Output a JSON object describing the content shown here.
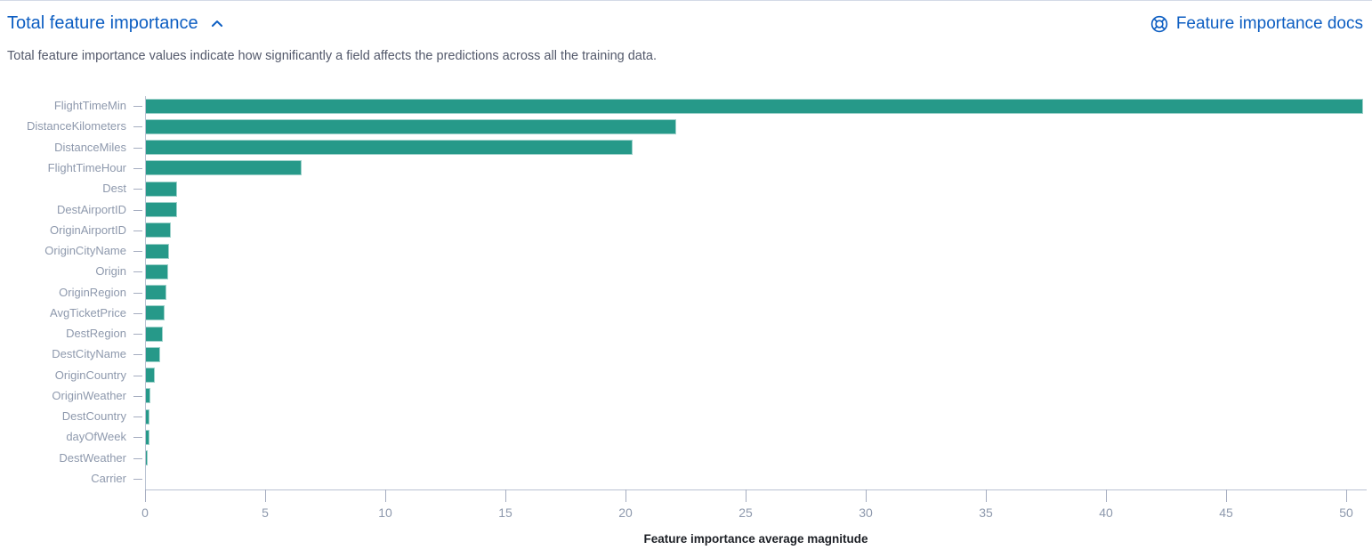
{
  "header": {
    "title": "Total feature importance",
    "docs_link_label": "Feature importance docs"
  },
  "description": "Total feature importance values indicate how significantly a field affects the predictions across all the training data.",
  "colors": {
    "link_blue": "#0d5ec2",
    "bar_teal": "#269989",
    "axis_line": "#b9c2d2",
    "tick_text": "#8e99ad",
    "description_text": "#53596b",
    "axis_title_text": "#1d2026"
  },
  "icons": {
    "collapse": "chevron-up-icon",
    "docs": "help-life-ring-icon"
  },
  "chart_data": {
    "type": "bar",
    "orientation": "horizontal",
    "title": "Total feature importance",
    "xlabel": "Feature importance average magnitude",
    "ylabel": "",
    "categories": [
      "FlightTimeMin",
      "DistanceKilometers",
      "DistanceMiles",
      "FlightTimeHour",
      "Dest",
      "DestAirportID",
      "OriginAirportID",
      "OriginCityName",
      "Origin",
      "OriginRegion",
      "AvgTicketPrice",
      "DestRegion",
      "DestCityName",
      "OriginCountry",
      "OriginWeather",
      "DestCountry",
      "dayOfWeek",
      "DestWeather",
      "Carrier"
    ],
    "values": [
      50.7,
      22.1,
      20.3,
      6.5,
      1.35,
      1.32,
      1.09,
      0.99,
      0.96,
      0.9,
      0.81,
      0.74,
      0.62,
      0.41,
      0.22,
      0.2,
      0.17,
      0.11,
      0.04
    ],
    "xticks": [
      0,
      5,
      10,
      15,
      20,
      25,
      30,
      35,
      40,
      45,
      50
    ],
    "xlim": [
      0,
      50.85
    ],
    "grid": false,
    "legend": false,
    "bar_color": "#269989"
  }
}
